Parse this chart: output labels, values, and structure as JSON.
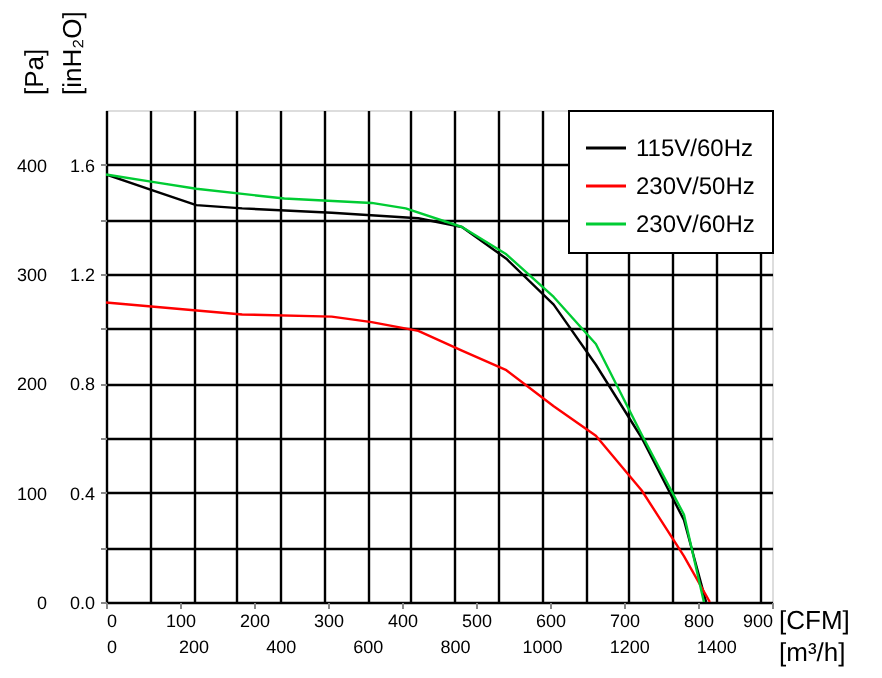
{
  "chart_data": {
    "type": "line",
    "xlabel": "[CFM]",
    "ylabel": "[Pa]",
    "x2label": "[m³/h]",
    "y2label": "[inH₂O]",
    "xlim": [
      0,
      900
    ],
    "xticks": [
      0,
      100,
      200,
      300,
      400,
      500,
      600,
      700,
      800,
      900
    ],
    "ylim": [
      0,
      450
    ],
    "yticks": [
      0,
      100,
      200,
      300,
      400
    ],
    "x2lim": [
      0,
      1529
    ],
    "x2ticks": [
      0,
      {
        "value": 100,
        "label": null
      },
      200,
      {
        "value": 300,
        "label": null
      },
      400,
      {
        "value": 500,
        "label": null
      },
      600,
      {
        "value": 700,
        "label": null
      },
      800,
      {
        "value": 900,
        "label": null
      },
      1000,
      {
        "value": 1100,
        "label": null
      },
      1200,
      {
        "value": 1300,
        "label": null
      },
      1400,
      {
        "value": 1500,
        "label": null
      }
    ],
    "y2lim": [
      0,
      1.8
    ],
    "y2ticks": [
      {
        "value": 0,
        "label": "0.0"
      },
      {
        "value": 0.2,
        "label": null
      },
      {
        "value": 0.4,
        "label": "0.4"
      },
      {
        "value": 0.6,
        "label": null
      },
      {
        "value": 0.8,
        "label": "0.8"
      },
      {
        "value": 1.0,
        "label": null
      },
      {
        "value": 1.2,
        "label": "1.2"
      },
      {
        "value": 1.4,
        "label": null
      },
      {
        "value": 1.6,
        "label": "1.6"
      }
    ],
    "grid": true,
    "legend": "top right",
    "series": [
      {
        "name": "115V/60Hz",
        "color": "#000000",
        "x": [
          0,
          65,
          122,
          184,
          305,
          422,
          481,
          541,
          605,
          662,
          724,
          781,
          811
        ],
        "values": [
          391,
          376,
          363,
          360,
          356,
          351,
          343,
          314,
          272,
          217,
          150,
          75,
          0
        ]
      },
      {
        "name": "230V/50Hz",
        "color": "#ff0000",
        "x": [
          0,
          184,
          305,
          359,
          422,
          481,
          541,
          605,
          662,
          724,
          781,
          816
        ],
        "values": [
          274,
          263,
          261,
          256,
          248,
          230,
          212,
          179,
          152,
          102,
          42,
          0
        ]
      },
      {
        "name": "230V/60Hz",
        "color": "#00cc33",
        "x": [
          0,
          65,
          122,
          241,
          359,
          405,
          481,
          541,
          605,
          662,
          724,
          781,
          808
        ],
        "values": [
          391,
          384,
          378,
          369,
          365,
          360,
          343,
          318,
          279,
          236,
          153,
          80,
          0
        ]
      }
    ]
  }
}
